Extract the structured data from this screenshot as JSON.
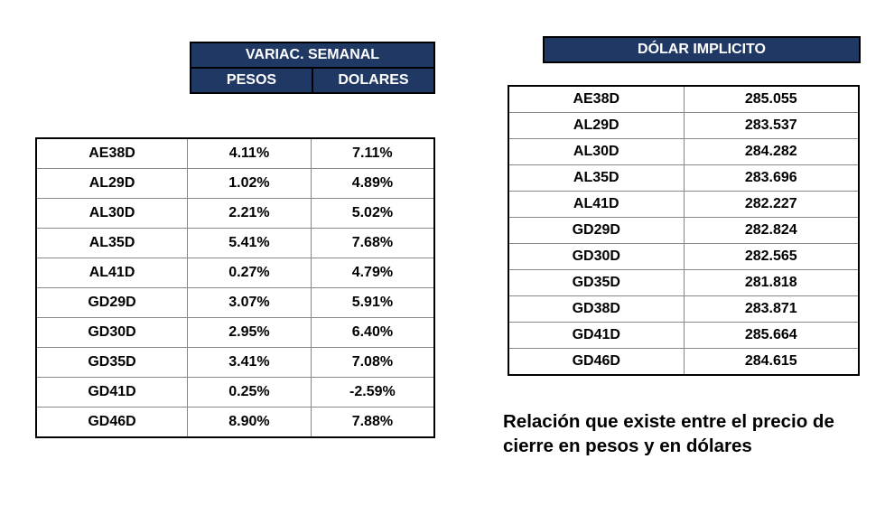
{
  "colors": {
    "header_bg": "#203864",
    "header_text": "#ffffff",
    "border": "#000000",
    "cell_border": "#888888",
    "text": "#000000",
    "background": "#ffffff"
  },
  "typography": {
    "family": "Arial",
    "cell_fontsize_pt": 12,
    "header_fontsize_pt": 12,
    "caption_fontsize_pt": 15,
    "weight": "700"
  },
  "left": {
    "header_main": "VARIAC. SEMANAL",
    "header_sub": [
      "PESOS",
      "DOLARES"
    ],
    "columns": [
      "ticker",
      "pesos_pct",
      "dolares_pct"
    ],
    "rows": [
      {
        "ticker": "AE38D",
        "pesos": "4.11%",
        "dolares": "7.11%"
      },
      {
        "ticker": "AL29D",
        "pesos": "1.02%",
        "dolares": "4.89%"
      },
      {
        "ticker": "AL30D",
        "pesos": "2.21%",
        "dolares": "5.02%"
      },
      {
        "ticker": "AL35D",
        "pesos": "5.41%",
        "dolares": "7.68%"
      },
      {
        "ticker": "AL41D",
        "pesos": "0.27%",
        "dolares": "4.79%"
      },
      {
        "ticker": "GD29D",
        "pesos": "3.07%",
        "dolares": "5.91%"
      },
      {
        "ticker": "GD30D",
        "pesos": "2.95%",
        "dolares": "6.40%"
      },
      {
        "ticker": "GD35D",
        "pesos": "3.41%",
        "dolares": "7.08%"
      },
      {
        "ticker": "GD41D",
        "pesos": "0.25%",
        "dolares": "-2.59%"
      },
      {
        "ticker": "GD46D",
        "pesos": "8.90%",
        "dolares": "7.88%"
      }
    ]
  },
  "right": {
    "header": "DÓLAR IMPLICITO",
    "columns": [
      "ticker",
      "value"
    ],
    "rows": [
      {
        "ticker": "AE38D",
        "value": "285.055"
      },
      {
        "ticker": "AL29D",
        "value": "283.537"
      },
      {
        "ticker": "AL30D",
        "value": "284.282"
      },
      {
        "ticker": "AL35D",
        "value": "283.696"
      },
      {
        "ticker": "AL41D",
        "value": "282.227"
      },
      {
        "ticker": "GD29D",
        "value": "282.824"
      },
      {
        "ticker": "GD30D",
        "value": "282.565"
      },
      {
        "ticker": "GD35D",
        "value": "281.818"
      },
      {
        "ticker": "GD38D",
        "value": "283.871"
      },
      {
        "ticker": "GD41D",
        "value": "285.664"
      },
      {
        "ticker": "GD46D",
        "value": "284.615"
      }
    ]
  },
  "caption": "Relación que existe entre el precio de cierre en pesos y en dólares"
}
